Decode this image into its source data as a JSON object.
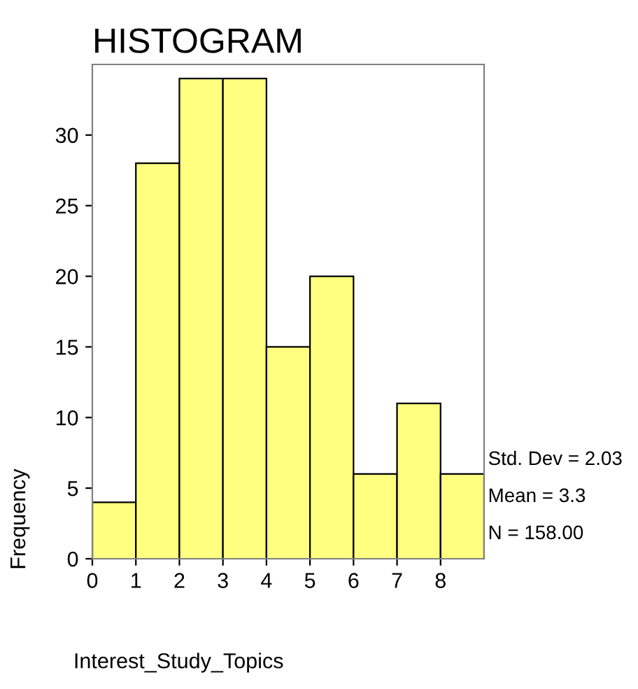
{
  "chart_data": {
    "type": "histogram",
    "title": "HISTOGRAM",
    "xlabel": "Interest_Study_Topics",
    "ylabel": "Frequency",
    "bins": [
      0,
      1,
      2,
      3,
      4,
      5,
      6,
      7,
      8,
      9
    ],
    "values": [
      4,
      28,
      34,
      34,
      15,
      20,
      6,
      11,
      6
    ],
    "color": "#ffff80",
    "xlim": [
      0,
      9
    ],
    "xticks": [
      0,
      1,
      2,
      3,
      4,
      5,
      6,
      7,
      8
    ],
    "ylim": [
      0,
      35
    ],
    "yticks": [
      0,
      5,
      10,
      15,
      20,
      25,
      30
    ],
    "grid": false,
    "legend": false,
    "annotations": [
      "Std. Dev = 2.03",
      "Mean = 3.3",
      "N = 158.00"
    ]
  }
}
